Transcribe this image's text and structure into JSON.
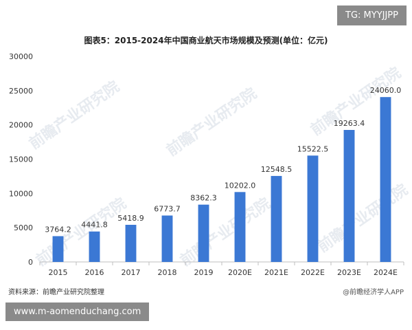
{
  "badge_top": "TG: MYYJJPP",
  "badge_bottom": "www.m-aomenduchang.com",
  "watermark": "前瞻产业研究院",
  "source": "资料来源：前瞻产业研究院整理",
  "credit": "@前瞻经济学人APP",
  "colors": {
    "bar": "#3b78d4",
    "axis": "#bfbfbf",
    "text": "#333333"
  },
  "chart_data": {
    "type": "bar",
    "title": "图表5：2015-2024年中国商业航天市场规模及预测(单位：亿元)",
    "categories": [
      "2015",
      "2016",
      "2017",
      "2018",
      "2019",
      "2020E",
      "2021E",
      "2022E",
      "2023E",
      "2024E"
    ],
    "values": [
      3764.2,
      4441.8,
      5418.9,
      6773.7,
      8362.3,
      10202.0,
      12548.5,
      15522.5,
      19263.4,
      24060.0
    ],
    "value_labels": [
      "3764.2",
      "4441.8",
      "5418.9",
      "6773.7",
      "8362.3",
      "10202.0",
      "12548.5",
      "15522.5",
      "19263.4",
      "24060.0"
    ],
    "yticks": [
      "0",
      "5000",
      "10000",
      "15000",
      "20000",
      "25000",
      "30000"
    ],
    "ylim": [
      0,
      30000
    ],
    "grid": false,
    "legend": "none"
  }
}
